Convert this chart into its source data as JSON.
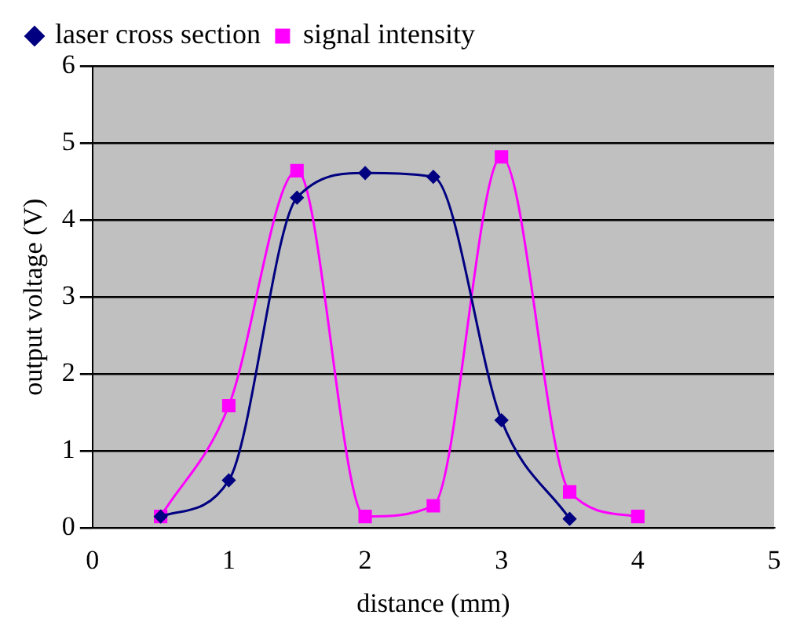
{
  "chart_data": {
    "type": "line",
    "xlabel": "distance (mm)",
    "ylabel": "output voltage (V)",
    "xlim": [
      0,
      5
    ],
    "xticks": [
      0,
      1,
      2,
      3,
      4,
      5
    ],
    "ylim": [
      0,
      6
    ],
    "yticks": [
      0,
      1,
      2,
      3,
      4,
      5,
      6
    ],
    "grid": "y",
    "legend": "top",
    "series": [
      {
        "name": "laser cross section",
        "color": "#000080",
        "marker": "diamond",
        "x": [
          0.5,
          1,
          1.5,
          2,
          2.5,
          3,
          3.5
        ],
        "values": [
          0.15,
          0.62,
          4.29,
          4.61,
          4.56,
          1.4,
          0.12
        ]
      },
      {
        "name": "signal intensity",
        "color": "#ff00ff",
        "marker": "square",
        "x": [
          0.5,
          1,
          1.5,
          2,
          2.5,
          3,
          3.5,
          4
        ],
        "values": [
          0.15,
          1.59,
          4.64,
          0.15,
          0.29,
          4.82,
          0.47,
          0.15
        ]
      }
    ]
  }
}
